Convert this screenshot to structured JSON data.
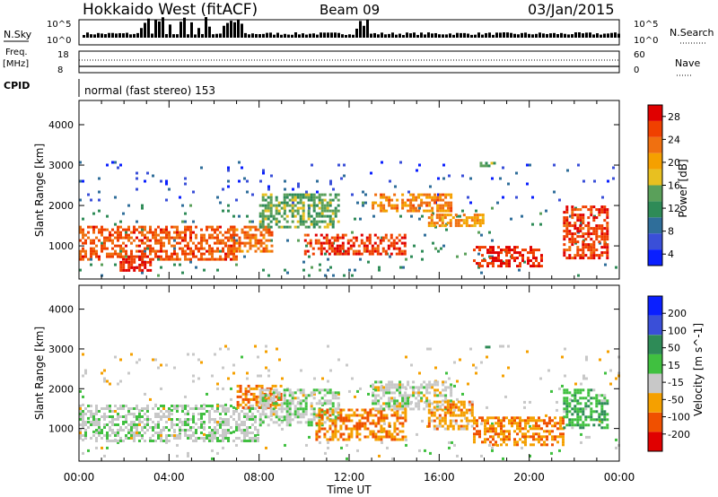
{
  "header": {
    "station": "Hokkaido West (fitACF)",
    "beam": "Beam 09",
    "date": "03/Jan/2015"
  },
  "aux_panels": {
    "nsky_label": "N.Sky",
    "nsearch_label": "N.Search",
    "freq_label_1": "Freq.",
    "freq_label_2": "[MHz]",
    "nave_label": "Nave",
    "cpid_label": "CPID",
    "noise_ticks": [
      "10^5",
      "10^0"
    ],
    "freq_ticks": [
      "18",
      "8"
    ],
    "nave_ticks": [
      "60",
      "0"
    ],
    "cpid_text": "normal (fast stereo) 153"
  },
  "chart_data": [
    {
      "type": "heatmap",
      "panel": "power",
      "ylabel": "Slant Range [km]",
      "xlabel": "Time UT",
      "x_ticks": [
        "00:00",
        "04:00",
        "08:00",
        "12:00",
        "16:00",
        "20:00",
        "00:00"
      ],
      "xlim_hours": [
        0,
        24
      ],
      "ylim": [
        180,
        4600
      ],
      "y_ticks": [
        1000,
        2000,
        3000,
        4000
      ],
      "colorbar_label": "Power [dB]",
      "colorbar_ticks": [
        "28",
        "24",
        "20",
        "16",
        "12",
        "8",
        "4"
      ],
      "colorscale": [
        "#0a1fff",
        "#3a4fd8",
        "#2f6e9a",
        "#2e8b57",
        "#5aa05a",
        "#e8c020",
        "#f5a000",
        "#f07010",
        "#f04000",
        "#e00000"
      ],
      "scatter_bands": [
        {
          "t": [
            0,
            24
          ],
          "r": [
            250,
            2100
          ],
          "level": 0.3
        },
        {
          "t": [
            0,
            24
          ],
          "r": [
            2100,
            3100
          ],
          "level": 0.1
        }
      ],
      "echo_regions": [
        {
          "t": [
            0,
            7
          ],
          "r": [
            700,
            1500
          ],
          "level": 0.85
        },
        {
          "t": [
            1.8,
            3.2
          ],
          "r": [
            380,
            760
          ],
          "level": 0.95
        },
        {
          "t": [
            6.6,
            8.6
          ],
          "r": [
            900,
            1500
          ],
          "level": 0.8
        },
        {
          "t": [
            8,
            11.5
          ],
          "r": [
            1500,
            2300
          ],
          "level": 0.45
        },
        {
          "t": [
            10,
            14.5
          ],
          "r": [
            800,
            1300
          ],
          "level": 0.9
        },
        {
          "t": [
            13,
            16.5
          ],
          "r": [
            1850,
            2300
          ],
          "level": 0.75
        },
        {
          "t": [
            15.5,
            18
          ],
          "r": [
            1500,
            1800
          ],
          "level": 0.7
        },
        {
          "t": [
            17.5,
            20.5
          ],
          "r": [
            500,
            1000
          ],
          "level": 0.95
        },
        {
          "t": [
            21.5,
            23.5
          ],
          "r": [
            700,
            2000
          ],
          "level": 0.9
        },
        {
          "t": [
            17.8,
            18.4
          ],
          "r": [
            2950,
            3080
          ],
          "level": 0.45
        }
      ]
    },
    {
      "type": "heatmap",
      "panel": "velocity",
      "ylabel": "Slant Range [km]",
      "xlabel": "Time UT",
      "x_ticks": [
        "00:00",
        "04:00",
        "08:00",
        "12:00",
        "16:00",
        "20:00",
        "00:00"
      ],
      "xlim_hours": [
        0,
        24
      ],
      "ylim": [
        180,
        4600
      ],
      "y_ticks": [
        1000,
        2000,
        3000,
        4000
      ],
      "colorbar_label": "Velocity [m s^-1]",
      "colorbar_ticks": [
        "200",
        "100",
        "50",
        "15",
        "-15",
        "-50",
        "-100",
        "-200"
      ],
      "colorscale": [
        "#e00000",
        "#f05000",
        "#f5a000",
        "#c8c8c8",
        "#40c040",
        "#2e8b57",
        "#3a4fd8",
        "#0a1fff"
      ],
      "scatter_bands": [
        {
          "t": [
            0,
            24
          ],
          "r": [
            250,
            2100
          ],
          "level": 0.45
        },
        {
          "t": [
            0,
            24
          ],
          "r": [
            2100,
            3100
          ],
          "level": 0.4
        }
      ],
      "echo_regions": [
        {
          "t": [
            0,
            8
          ],
          "r": [
            700,
            1600
          ],
          "level": 0.46
        },
        {
          "t": [
            7,
            9
          ],
          "r": [
            1500,
            2100
          ],
          "level": 0.2
        },
        {
          "t": [
            8,
            11.5
          ],
          "r": [
            1100,
            2000
          ],
          "level": 0.46
        },
        {
          "t": [
            10.5,
            14.5
          ],
          "r": [
            700,
            1500
          ],
          "level": 0.22
        },
        {
          "t": [
            13,
            16.5
          ],
          "r": [
            1500,
            2200
          ],
          "level": 0.44
        },
        {
          "t": [
            15.5,
            17.5
          ],
          "r": [
            1000,
            1700
          ],
          "level": 0.28
        },
        {
          "t": [
            17.5,
            21.5
          ],
          "r": [
            600,
            1300
          ],
          "level": 0.24
        },
        {
          "t": [
            21.5,
            23.5
          ],
          "r": [
            1000,
            2000
          ],
          "level": 0.6
        },
        {
          "t": [
            17.8,
            18.4
          ],
          "r": [
            2950,
            3080
          ],
          "level": 0.72
        }
      ]
    }
  ]
}
